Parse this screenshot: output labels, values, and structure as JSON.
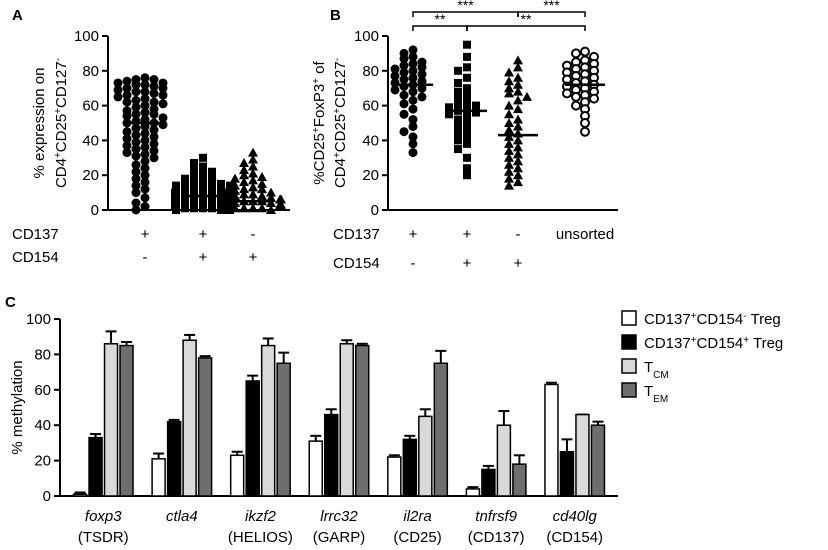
{
  "panels": {
    "a": "A",
    "b": "B",
    "c": "C"
  },
  "chart_data": [
    {
      "id": "A",
      "type": "scatter",
      "title": "",
      "ylabel": "% expression on CD4+CD25+CD127-",
      "ylabel_parts": [
        "% expression on",
        "CD4",
        "+",
        "CD25",
        "+",
        "CD127",
        "-"
      ],
      "ylim": [
        0,
        100
      ],
      "yticks": [
        "0",
        "20",
        "40",
        "60",
        "80",
        "100"
      ],
      "row_labels": [
        "CD137",
        "CD154"
      ],
      "groups": [
        {
          "cd137": "+",
          "cd154": "-",
          "marker": "circle",
          "median": 50,
          "values": [
            76,
            75,
            75,
            74,
            73,
            73,
            72,
            72,
            71,
            70,
            70,
            69,
            68,
            68,
            67,
            66,
            66,
            65,
            64,
            63,
            62,
            62,
            61,
            60,
            59,
            58,
            57,
            56,
            55,
            55,
            54,
            53,
            52,
            51,
            50,
            50,
            49,
            48,
            47,
            46,
            45,
            44,
            43,
            42,
            41,
            40,
            39,
            38,
            37,
            36,
            35,
            34,
            33,
            32,
            31,
            30,
            28,
            26,
            24,
            22,
            20,
            18,
            16,
            14,
            12,
            10,
            7,
            4,
            2,
            0
          ]
        },
        {
          "cd137": "+",
          "cd154": "+",
          "marker": "square",
          "median": 8,
          "values": [
            30,
            27,
            25,
            23,
            22,
            21,
            20,
            19,
            18,
            17,
            17,
            16,
            15,
            15,
            14,
            14,
            13,
            13,
            12,
            12,
            11,
            11,
            10,
            10,
            10,
            9,
            9,
            9,
            8,
            8,
            8,
            8,
            7,
            7,
            7,
            6,
            6,
            6,
            6,
            5,
            5,
            5,
            5,
            4,
            4,
            4,
            3,
            3,
            3,
            3,
            2,
            2,
            2,
            1,
            1,
            1,
            1,
            0,
            0,
            0
          ]
        },
        {
          "cd137": "-",
          "cd154": "+",
          "marker": "triangle",
          "median": 5,
          "values": [
            33,
            29,
            27,
            25,
            23,
            21,
            20,
            19,
            18,
            17,
            16,
            15,
            14,
            13,
            12,
            12,
            11,
            10,
            10,
            9,
            9,
            8,
            8,
            7,
            7,
            6,
            6,
            6,
            5,
            5,
            5,
            4,
            4,
            4,
            3,
            3,
            3,
            3,
            2,
            2,
            2,
            2,
            1,
            1,
            1,
            1,
            0,
            0
          ]
        }
      ]
    },
    {
      "id": "B",
      "type": "scatter",
      "title": "",
      "ylabel": "%CD25+FoxP3+ of CD4+CD25+CD127-",
      "ylabel_line1": [
        "%CD25",
        "+",
        "FoxP3",
        "+",
        " of"
      ],
      "ylabel_line2": [
        "CD4",
        "+",
        "CD25",
        "+",
        "CD127",
        "-"
      ],
      "ylim": [
        0,
        100
      ],
      "yticks": [
        "0",
        "20",
        "40",
        "60",
        "80",
        "100"
      ],
      "row_labels": [
        "CD137",
        "CD154"
      ],
      "groups": [
        {
          "cd137": "+",
          "cd154": "-",
          "label": "",
          "marker": "circle",
          "median": 72,
          "values": [
            92,
            90,
            88,
            87,
            85,
            84,
            83,
            82,
            81,
            80,
            79,
            78,
            77,
            76,
            75,
            74,
            73,
            72,
            71,
            70,
            69,
            68,
            66,
            65,
            63,
            61,
            58,
            55,
            52,
            48,
            45,
            42,
            38,
            33
          ]
        },
        {
          "cd137": "+",
          "cd154": "+",
          "label": "",
          "marker": "square",
          "median": 57,
          "values": [
            95,
            88,
            82,
            80,
            76,
            73,
            70,
            68,
            66,
            64,
            62,
            61,
            60,
            59,
            58,
            57,
            56,
            55,
            54,
            52,
            50,
            48,
            46,
            44,
            42,
            40,
            38,
            35,
            30,
            24,
            20
          ]
        },
        {
          "cd137": "-",
          "cd154": "+",
          "label": "",
          "marker": "triangle",
          "median": 43,
          "values": [
            86,
            82,
            79,
            76,
            74,
            72,
            70,
            68,
            67,
            65,
            63,
            60,
            58,
            55,
            52,
            50,
            48,
            46,
            44,
            42,
            40,
            38,
            36,
            34,
            32,
            30,
            28,
            26,
            24,
            22,
            20,
            18,
            16,
            14
          ]
        },
        {
          "cd137": "",
          "cd154": "",
          "label": "unsorted",
          "marker": "open-circle",
          "median": 72,
          "values": [
            91,
            90,
            88,
            86,
            85,
            84,
            83,
            82,
            81,
            80,
            79,
            78,
            77,
            76,
            75,
            74,
            73,
            72,
            71,
            70,
            69,
            68,
            67,
            66,
            65,
            64,
            62,
            60,
            58,
            54,
            50,
            45
          ]
        }
      ],
      "significance": [
        {
          "from": 0,
          "to": 2,
          "label": "***",
          "level": 3
        },
        {
          "from": 2,
          "to": 3,
          "label": "***",
          "level": 3
        },
        {
          "from": 0,
          "to": 1,
          "label": "**",
          "level": 2
        },
        {
          "from": 1,
          "to": 3,
          "label": "**",
          "level": 2
        }
      ]
    },
    {
      "id": "C",
      "type": "bar",
      "title": "",
      "xlabel": "",
      "ylabel": "% methylation",
      "ylim": [
        0,
        100
      ],
      "yticks": [
        "0",
        "20",
        "40",
        "60",
        "80",
        "100"
      ],
      "categories": [
        {
          "gene": "foxp3",
          "protein": "(TSDR)"
        },
        {
          "gene": "ctla4",
          "protein": ""
        },
        {
          "gene": "ikzf2",
          "protein": "(HELIOS)"
        },
        {
          "gene": "lrrc32",
          "protein": "(GARP)"
        },
        {
          "gene": "il2ra",
          "protein": "(CD25)"
        },
        {
          "gene": "tnfrsf9",
          "protein": "(CD137)"
        },
        {
          "gene": "cd40lg",
          "protein": "(CD154)"
        }
      ],
      "series": [
        {
          "name": "CD137+CD154- Treg",
          "label_parts": [
            "CD137",
            "+",
            "CD154",
            "-",
            " Treg"
          ],
          "color": "#ffffff",
          "values": [
            1,
            21,
            23,
            31,
            22,
            4,
            63
          ],
          "errors": [
            1,
            3,
            2,
            3,
            1,
            1,
            1
          ]
        },
        {
          "name": "CD137+CD154+ Treg",
          "label_parts": [
            "CD137",
            "+",
            "CD154",
            "+",
            " Treg"
          ],
          "color": "#000000",
          "values": [
            33,
            42,
            65,
            46,
            32,
            15,
            25
          ],
          "errors": [
            2,
            1,
            3,
            3,
            2,
            2,
            7
          ]
        },
        {
          "name": "TCM",
          "label_parts": [
            "T",
            "CM"
          ],
          "color": "#d9d9d9",
          "values": [
            86,
            88,
            85,
            86,
            45,
            40,
            46
          ],
          "errors": [
            7,
            3,
            4,
            2,
            4,
            8,
            0
          ]
        },
        {
          "name": "TEM",
          "label_parts": [
            "T",
            "EM"
          ],
          "color": "#6e6e6e",
          "values": [
            85,
            78,
            75,
            85,
            75,
            18,
            40
          ],
          "errors": [
            2,
            1,
            6,
            1,
            7,
            5,
            2
          ]
        }
      ]
    }
  ]
}
